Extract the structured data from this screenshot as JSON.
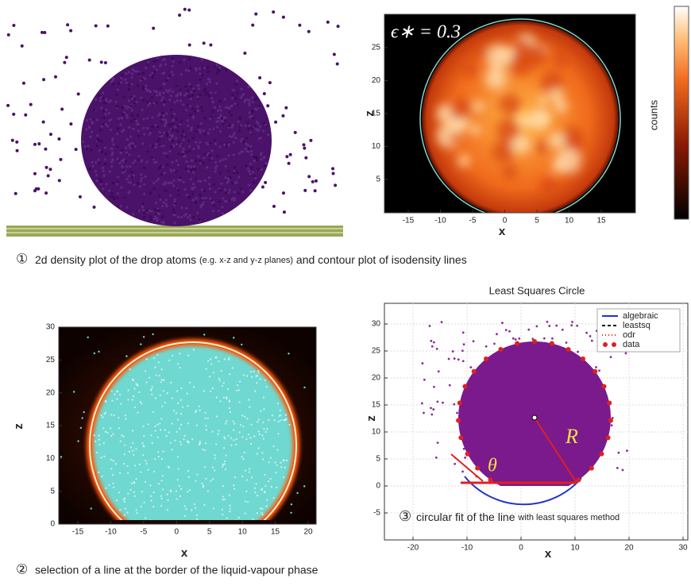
{
  "panel_density": {
    "annotation": "ϵ∗ = 0.3",
    "colorbar_label": "counts",
    "xlabel": "x",
    "ylabel": "z",
    "xticks": [
      -15,
      -10,
      -5,
      0,
      5,
      10,
      15
    ],
    "yticks": [
      5,
      10,
      15,
      20,
      25
    ]
  },
  "caption_1": {
    "marker": "①",
    "text": "2d density plot of the drop atoms",
    "note": "(e.g. x-z and y-z planes)",
    "text_end": "and contour plot of isodensity lines"
  },
  "panel_selection": {
    "xlabel": "x",
    "ylabel": "z",
    "xticks": [
      -15,
      -10,
      -5,
      0,
      5,
      10,
      15,
      20
    ],
    "yticks": [
      0,
      5,
      10,
      15,
      20,
      25,
      30
    ]
  },
  "caption_2": {
    "marker": "②",
    "text": "selection of a line at the border of the liquid-vapour phase"
  },
  "panel_fit": {
    "title": "Least Squares Circle",
    "xlabel": "x",
    "ylabel": "z",
    "xticks": [
      -20,
      -10,
      0,
      10,
      20,
      30
    ],
    "yticks": [
      -5,
      0,
      5,
      10,
      15,
      20,
      25,
      30
    ],
    "legend": [
      "algebraic",
      "leastsq",
      "odr",
      "data"
    ],
    "radius_label": "R",
    "angle_label": "θ"
  },
  "caption_3": {
    "marker": "③",
    "text": "circular fit of the line",
    "note": "with least squares method"
  }
}
